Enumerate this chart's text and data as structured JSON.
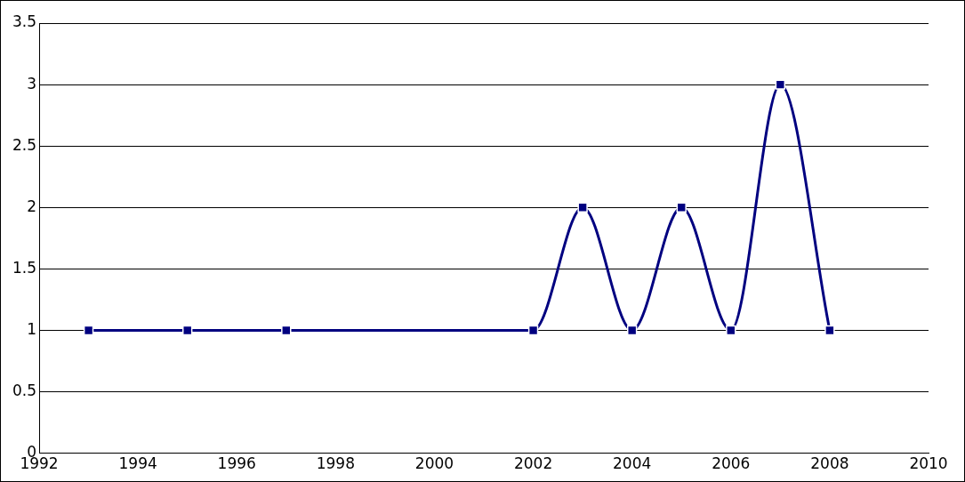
{
  "chart_data": {
    "type": "line",
    "x": [
      1993,
      1995,
      1997,
      2002,
      2003,
      2004,
      2005,
      2006,
      2007,
      2008
    ],
    "series": [
      {
        "color": "#000080",
        "values": [
          1,
          1,
          1,
          1,
          2,
          1,
          2,
          1,
          3,
          1
        ]
      }
    ],
    "xlim": [
      1992,
      2010
    ],
    "xticks": [
      1992,
      1994,
      1996,
      1998,
      2000,
      2002,
      2004,
      2006,
      2008,
      2010
    ],
    "ylim": [
      0,
      3.5
    ],
    "yticks": [
      0,
      0.5,
      1,
      1.5,
      2,
      2.5,
      3,
      3.5
    ],
    "grid": "y",
    "marker": "square",
    "line_style": "solid"
  }
}
